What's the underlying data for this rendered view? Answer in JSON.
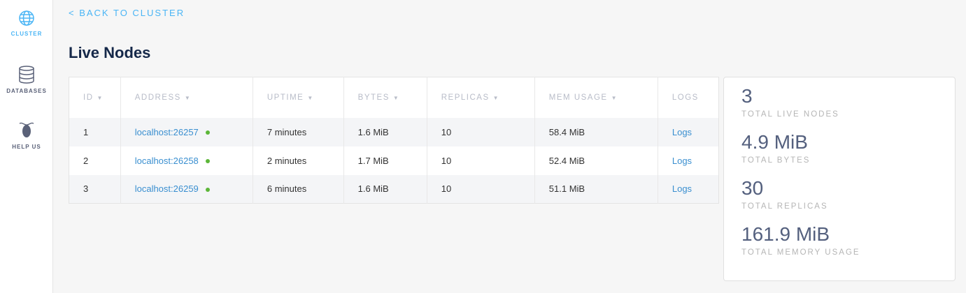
{
  "sidebar": {
    "items": [
      {
        "label": "CLUSTER",
        "icon": "globe-icon",
        "active": true
      },
      {
        "label": "DATABASES",
        "icon": "database-icon"
      },
      {
        "label": "HELP US",
        "icon": "cockroach-icon"
      }
    ]
  },
  "back_link": "< BACK TO CLUSTER",
  "page_title": "Live Nodes",
  "table": {
    "columns": [
      {
        "label": "ID",
        "sortable": true
      },
      {
        "label": "ADDRESS",
        "sortable": true
      },
      {
        "label": "UPTIME",
        "sortable": true
      },
      {
        "label": "BYTES",
        "sortable": true
      },
      {
        "label": "REPLICAS",
        "sortable": true
      },
      {
        "label": "MEM USAGE",
        "sortable": true
      },
      {
        "label": "LOGS",
        "sortable": false
      }
    ],
    "sort_arrow": "▼",
    "rows": [
      {
        "id": "1",
        "address": "localhost:26257",
        "uptime": "7 minutes",
        "bytes": "1.6 MiB",
        "replicas": "10",
        "mem": "58.4 MiB",
        "logs": "Logs",
        "status": "live"
      },
      {
        "id": "2",
        "address": "localhost:26258",
        "uptime": "2 minutes",
        "bytes": "1.7 MiB",
        "replicas": "10",
        "mem": "52.4 MiB",
        "logs": "Logs",
        "status": "live"
      },
      {
        "id": "3",
        "address": "localhost:26259",
        "uptime": "6 minutes",
        "bytes": "1.6 MiB",
        "replicas": "10",
        "mem": "51.1 MiB",
        "logs": "Logs",
        "status": "live"
      }
    ]
  },
  "summary": [
    {
      "value": "3",
      "label": "TOTAL LIVE NODES"
    },
    {
      "value": "4.9 MiB",
      "label": "TOTAL BYTES"
    },
    {
      "value": "30",
      "label": "TOTAL REPLICAS"
    },
    {
      "value": "161.9 MiB",
      "label": "TOTAL MEMORY USAGE"
    }
  ],
  "colors": {
    "accent": "#4ab5f5",
    "link": "#3a8fd0",
    "live": "#5cb638",
    "title": "#152849"
  }
}
